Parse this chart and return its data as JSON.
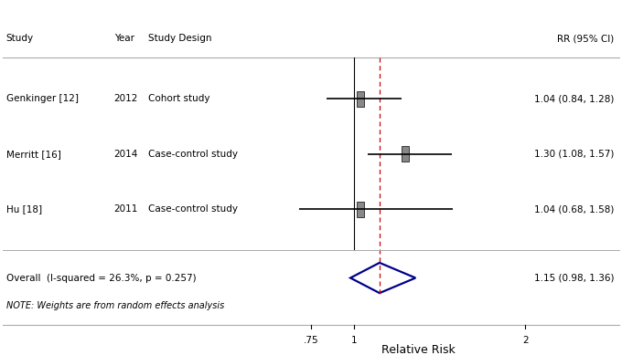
{
  "studies": [
    {
      "name": "Genkinger [12]",
      "year": "2012",
      "design": "Cohort study",
      "rr": 1.04,
      "ci_low": 0.84,
      "ci_high": 1.28,
      "label": "1.04 (0.84, 1.28)"
    },
    {
      "name": "Merritt [16]",
      "year": "2014",
      "design": "Case-control study",
      "rr": 1.3,
      "ci_low": 1.08,
      "ci_high": 1.57,
      "label": "1.30 (1.08, 1.57)"
    },
    {
      "name": "Hu [18]",
      "year": "2011",
      "design": "Case-control study",
      "rr": 1.04,
      "ci_low": 0.68,
      "ci_high": 1.58,
      "label": "1.04 (0.68, 1.58)"
    }
  ],
  "overall": {
    "name": "Overall  (I-squared = 26.3%, p = 0.257)",
    "rr": 1.15,
    "ci_low": 0.98,
    "ci_high": 1.36,
    "label": "1.15 (0.98, 1.36)"
  },
  "note": "NOTE: Weights are from random effects analysis",
  "xticks": [
    0.75,
    1.0,
    2.0
  ],
  "xticklabels": [
    ".75",
    "1",
    "2"
  ],
  "ref_line": 1.0,
  "dashed_line": 1.15,
  "xlabel": "Relative Risk",
  "col_headers": [
    "Study",
    "Year",
    "Study Design",
    "RR (95% CI)"
  ],
  "background_color": "#ffffff",
  "box_color": "#888888",
  "line_color": "#000000",
  "diamond_color": "#00008B",
  "dashed_color": "#CC0000"
}
